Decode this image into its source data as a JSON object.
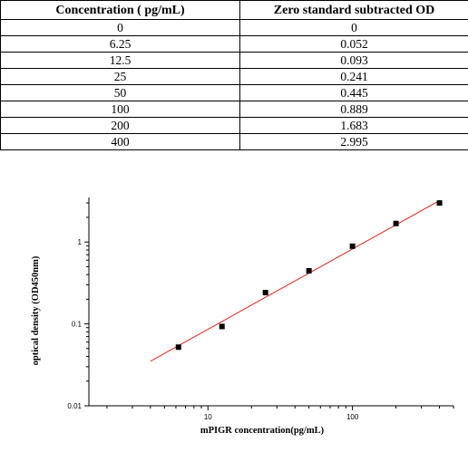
{
  "table": {
    "headers": [
      "Concentration ( pg/mL)",
      "Zero standard subtracted OD"
    ],
    "rows": [
      [
        "0",
        "0"
      ],
      [
        "6.25",
        "0.052"
      ],
      [
        "12.5",
        "0.093"
      ],
      [
        "25",
        "0.241"
      ],
      [
        "50",
        "0.445"
      ],
      [
        "100",
        "0.889"
      ],
      [
        "200",
        "1.683"
      ],
      [
        "400",
        "2.995"
      ]
    ]
  },
  "chart_data": {
    "type": "scatter",
    "title": "",
    "xlabel": "mPIGR  concentration(pg/mL)",
    "ylabel": "optical density (OD450nm)",
    "x_scale": "log",
    "y_scale": "log",
    "xlim": [
      1.5,
      500
    ],
    "ylim": [
      0.01,
      3.5
    ],
    "x_ticks": [
      {
        "value": 10,
        "label": "10"
      },
      {
        "value": 100,
        "label": "100"
      }
    ],
    "y_ticks": [
      {
        "value": 0.01,
        "label": "0.01"
      },
      {
        "value": 0.1,
        "label": "0.1"
      },
      {
        "value": 1,
        "label": "1"
      }
    ],
    "grid": false,
    "series": [
      {
        "kind": "points",
        "marker": "square",
        "color": "#000000",
        "x": [
          6.25,
          12.5,
          25,
          50,
          100,
          200,
          400
        ],
        "y": [
          0.052,
          0.093,
          0.241,
          0.445,
          0.889,
          1.683,
          2.995
        ]
      },
      {
        "kind": "fit-line",
        "color": "#e8322b",
        "x": [
          4,
          400
        ],
        "y": [
          0.035,
          3.2
        ]
      }
    ]
  }
}
